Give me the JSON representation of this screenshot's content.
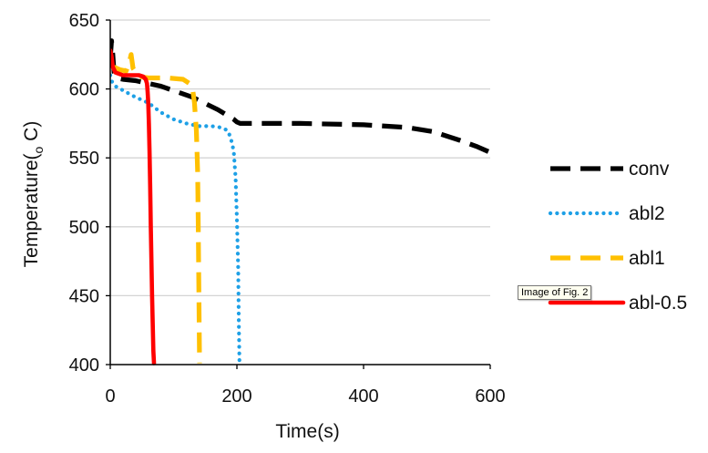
{
  "tooltip": "Image of Fig. 2",
  "chart_data": {
    "type": "line",
    "title": "",
    "xlabel": "Time(s)",
    "ylabel": {
      "pre": "Temperature(",
      "sub": "o",
      "post": " C)"
    },
    "xlim": [
      0,
      600
    ],
    "ylim": [
      400,
      650
    ],
    "xticks": [
      0,
      200,
      400,
      600
    ],
    "yticks": [
      400,
      450,
      500,
      550,
      600,
      650
    ],
    "grid": "horizontal",
    "legend_position": "right",
    "series": [
      {
        "name": "conv",
        "color": "#000000",
        "dash": "long-dash",
        "x": [
          0,
          2,
          4,
          6,
          10,
          20,
          40,
          80,
          130,
          170,
          195,
          200,
          205,
          230,
          300,
          400,
          470,
          510,
          550,
          580,
          600
        ],
        "y": [
          622,
          635,
          625,
          612,
          608,
          607,
          606,
          602,
          594,
          585,
          578,
          576,
          575,
          575,
          575,
          574,
          572,
          569,
          563,
          558,
          554
        ]
      },
      {
        "name": "abl2",
        "color": "#1EA0E6",
        "dash": "dotted",
        "x": [
          0,
          3,
          8,
          20,
          40,
          60,
          80,
          100,
          120,
          140,
          160,
          175,
          185,
          190,
          195,
          198,
          200,
          202,
          203,
          204
        ],
        "y": [
          610,
          605,
          602,
          599,
          594,
          590,
          583,
          578,
          575,
          573,
          573,
          572,
          570,
          565,
          555,
          535,
          505,
          470,
          430,
          401
        ]
      },
      {
        "name": "abl1",
        "color": "#FFC000",
        "dash": "long-dash",
        "x": [
          0,
          5,
          15,
          25,
          30,
          33,
          36,
          45,
          60,
          90,
          115,
          125,
          130,
          133,
          136,
          138,
          139,
          140,
          141
        ],
        "y": [
          618,
          616,
          614,
          613,
          619,
          625,
          615,
          609,
          608,
          608,
          607,
          604,
          600,
          590,
          570,
          540,
          500,
          450,
          401
        ]
      },
      {
        "name": "abl-0.5",
        "color": "#FF0000",
        "dash": "solid",
        "x": [
          0,
          2,
          4,
          8,
          20,
          35,
          45,
          52,
          56,
          58,
          59,
          60,
          61,
          62,
          63,
          64,
          65,
          66,
          67,
          68,
          69
        ],
        "y": [
          628,
          624,
          616,
          612,
          610,
          610,
          610,
          609,
          607,
          604,
          598,
          590,
          575,
          555,
          530,
          500,
          475,
          450,
          430,
          410,
          401
        ]
      }
    ]
  }
}
